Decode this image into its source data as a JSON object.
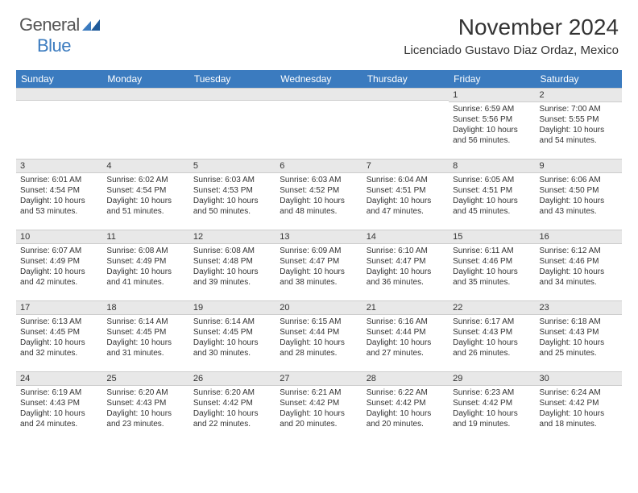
{
  "logo": {
    "general": "General",
    "blue": "Blue"
  },
  "title": "November 2024",
  "location": "Licenciado Gustavo Diaz Ordaz, Mexico",
  "colors": {
    "header_bg": "#3b7bbf",
    "header_text": "#ffffff",
    "daybar_bg": "#e8e8e8",
    "border": "#cccccc",
    "text": "#333333",
    "logo_gray": "#555555",
    "logo_blue": "#3b7bbf"
  },
  "day_headers": [
    "Sunday",
    "Monday",
    "Tuesday",
    "Wednesday",
    "Thursday",
    "Friday",
    "Saturday"
  ],
  "weeks": [
    [
      {
        "day": ""
      },
      {
        "day": ""
      },
      {
        "day": ""
      },
      {
        "day": ""
      },
      {
        "day": ""
      },
      {
        "day": "1",
        "sunrise": "Sunrise: 6:59 AM",
        "sunset": "Sunset: 5:56 PM",
        "daylight1": "Daylight: 10 hours",
        "daylight2": "and 56 minutes."
      },
      {
        "day": "2",
        "sunrise": "Sunrise: 7:00 AM",
        "sunset": "Sunset: 5:55 PM",
        "daylight1": "Daylight: 10 hours",
        "daylight2": "and 54 minutes."
      }
    ],
    [
      {
        "day": "3",
        "sunrise": "Sunrise: 6:01 AM",
        "sunset": "Sunset: 4:54 PM",
        "daylight1": "Daylight: 10 hours",
        "daylight2": "and 53 minutes."
      },
      {
        "day": "4",
        "sunrise": "Sunrise: 6:02 AM",
        "sunset": "Sunset: 4:54 PM",
        "daylight1": "Daylight: 10 hours",
        "daylight2": "and 51 minutes."
      },
      {
        "day": "5",
        "sunrise": "Sunrise: 6:03 AM",
        "sunset": "Sunset: 4:53 PM",
        "daylight1": "Daylight: 10 hours",
        "daylight2": "and 50 minutes."
      },
      {
        "day": "6",
        "sunrise": "Sunrise: 6:03 AM",
        "sunset": "Sunset: 4:52 PM",
        "daylight1": "Daylight: 10 hours",
        "daylight2": "and 48 minutes."
      },
      {
        "day": "7",
        "sunrise": "Sunrise: 6:04 AM",
        "sunset": "Sunset: 4:51 PM",
        "daylight1": "Daylight: 10 hours",
        "daylight2": "and 47 minutes."
      },
      {
        "day": "8",
        "sunrise": "Sunrise: 6:05 AM",
        "sunset": "Sunset: 4:51 PM",
        "daylight1": "Daylight: 10 hours",
        "daylight2": "and 45 minutes."
      },
      {
        "day": "9",
        "sunrise": "Sunrise: 6:06 AM",
        "sunset": "Sunset: 4:50 PM",
        "daylight1": "Daylight: 10 hours",
        "daylight2": "and 43 minutes."
      }
    ],
    [
      {
        "day": "10",
        "sunrise": "Sunrise: 6:07 AM",
        "sunset": "Sunset: 4:49 PM",
        "daylight1": "Daylight: 10 hours",
        "daylight2": "and 42 minutes."
      },
      {
        "day": "11",
        "sunrise": "Sunrise: 6:08 AM",
        "sunset": "Sunset: 4:49 PM",
        "daylight1": "Daylight: 10 hours",
        "daylight2": "and 41 minutes."
      },
      {
        "day": "12",
        "sunrise": "Sunrise: 6:08 AM",
        "sunset": "Sunset: 4:48 PM",
        "daylight1": "Daylight: 10 hours",
        "daylight2": "and 39 minutes."
      },
      {
        "day": "13",
        "sunrise": "Sunrise: 6:09 AM",
        "sunset": "Sunset: 4:47 PM",
        "daylight1": "Daylight: 10 hours",
        "daylight2": "and 38 minutes."
      },
      {
        "day": "14",
        "sunrise": "Sunrise: 6:10 AM",
        "sunset": "Sunset: 4:47 PM",
        "daylight1": "Daylight: 10 hours",
        "daylight2": "and 36 minutes."
      },
      {
        "day": "15",
        "sunrise": "Sunrise: 6:11 AM",
        "sunset": "Sunset: 4:46 PM",
        "daylight1": "Daylight: 10 hours",
        "daylight2": "and 35 minutes."
      },
      {
        "day": "16",
        "sunrise": "Sunrise: 6:12 AM",
        "sunset": "Sunset: 4:46 PM",
        "daylight1": "Daylight: 10 hours",
        "daylight2": "and 34 minutes."
      }
    ],
    [
      {
        "day": "17",
        "sunrise": "Sunrise: 6:13 AM",
        "sunset": "Sunset: 4:45 PM",
        "daylight1": "Daylight: 10 hours",
        "daylight2": "and 32 minutes."
      },
      {
        "day": "18",
        "sunrise": "Sunrise: 6:14 AM",
        "sunset": "Sunset: 4:45 PM",
        "daylight1": "Daylight: 10 hours",
        "daylight2": "and 31 minutes."
      },
      {
        "day": "19",
        "sunrise": "Sunrise: 6:14 AM",
        "sunset": "Sunset: 4:45 PM",
        "daylight1": "Daylight: 10 hours",
        "daylight2": "and 30 minutes."
      },
      {
        "day": "20",
        "sunrise": "Sunrise: 6:15 AM",
        "sunset": "Sunset: 4:44 PM",
        "daylight1": "Daylight: 10 hours",
        "daylight2": "and 28 minutes."
      },
      {
        "day": "21",
        "sunrise": "Sunrise: 6:16 AM",
        "sunset": "Sunset: 4:44 PM",
        "daylight1": "Daylight: 10 hours",
        "daylight2": "and 27 minutes."
      },
      {
        "day": "22",
        "sunrise": "Sunrise: 6:17 AM",
        "sunset": "Sunset: 4:43 PM",
        "daylight1": "Daylight: 10 hours",
        "daylight2": "and 26 minutes."
      },
      {
        "day": "23",
        "sunrise": "Sunrise: 6:18 AM",
        "sunset": "Sunset: 4:43 PM",
        "daylight1": "Daylight: 10 hours",
        "daylight2": "and 25 minutes."
      }
    ],
    [
      {
        "day": "24",
        "sunrise": "Sunrise: 6:19 AM",
        "sunset": "Sunset: 4:43 PM",
        "daylight1": "Daylight: 10 hours",
        "daylight2": "and 24 minutes."
      },
      {
        "day": "25",
        "sunrise": "Sunrise: 6:20 AM",
        "sunset": "Sunset: 4:43 PM",
        "daylight1": "Daylight: 10 hours",
        "daylight2": "and 23 minutes."
      },
      {
        "day": "26",
        "sunrise": "Sunrise: 6:20 AM",
        "sunset": "Sunset: 4:42 PM",
        "daylight1": "Daylight: 10 hours",
        "daylight2": "and 22 minutes."
      },
      {
        "day": "27",
        "sunrise": "Sunrise: 6:21 AM",
        "sunset": "Sunset: 4:42 PM",
        "daylight1": "Daylight: 10 hours",
        "daylight2": "and 20 minutes."
      },
      {
        "day": "28",
        "sunrise": "Sunrise: 6:22 AM",
        "sunset": "Sunset: 4:42 PM",
        "daylight1": "Daylight: 10 hours",
        "daylight2": "and 20 minutes."
      },
      {
        "day": "29",
        "sunrise": "Sunrise: 6:23 AM",
        "sunset": "Sunset: 4:42 PM",
        "daylight1": "Daylight: 10 hours",
        "daylight2": "and 19 minutes."
      },
      {
        "day": "30",
        "sunrise": "Sunrise: 6:24 AM",
        "sunset": "Sunset: 4:42 PM",
        "daylight1": "Daylight: 10 hours",
        "daylight2": "and 18 minutes."
      }
    ]
  ]
}
